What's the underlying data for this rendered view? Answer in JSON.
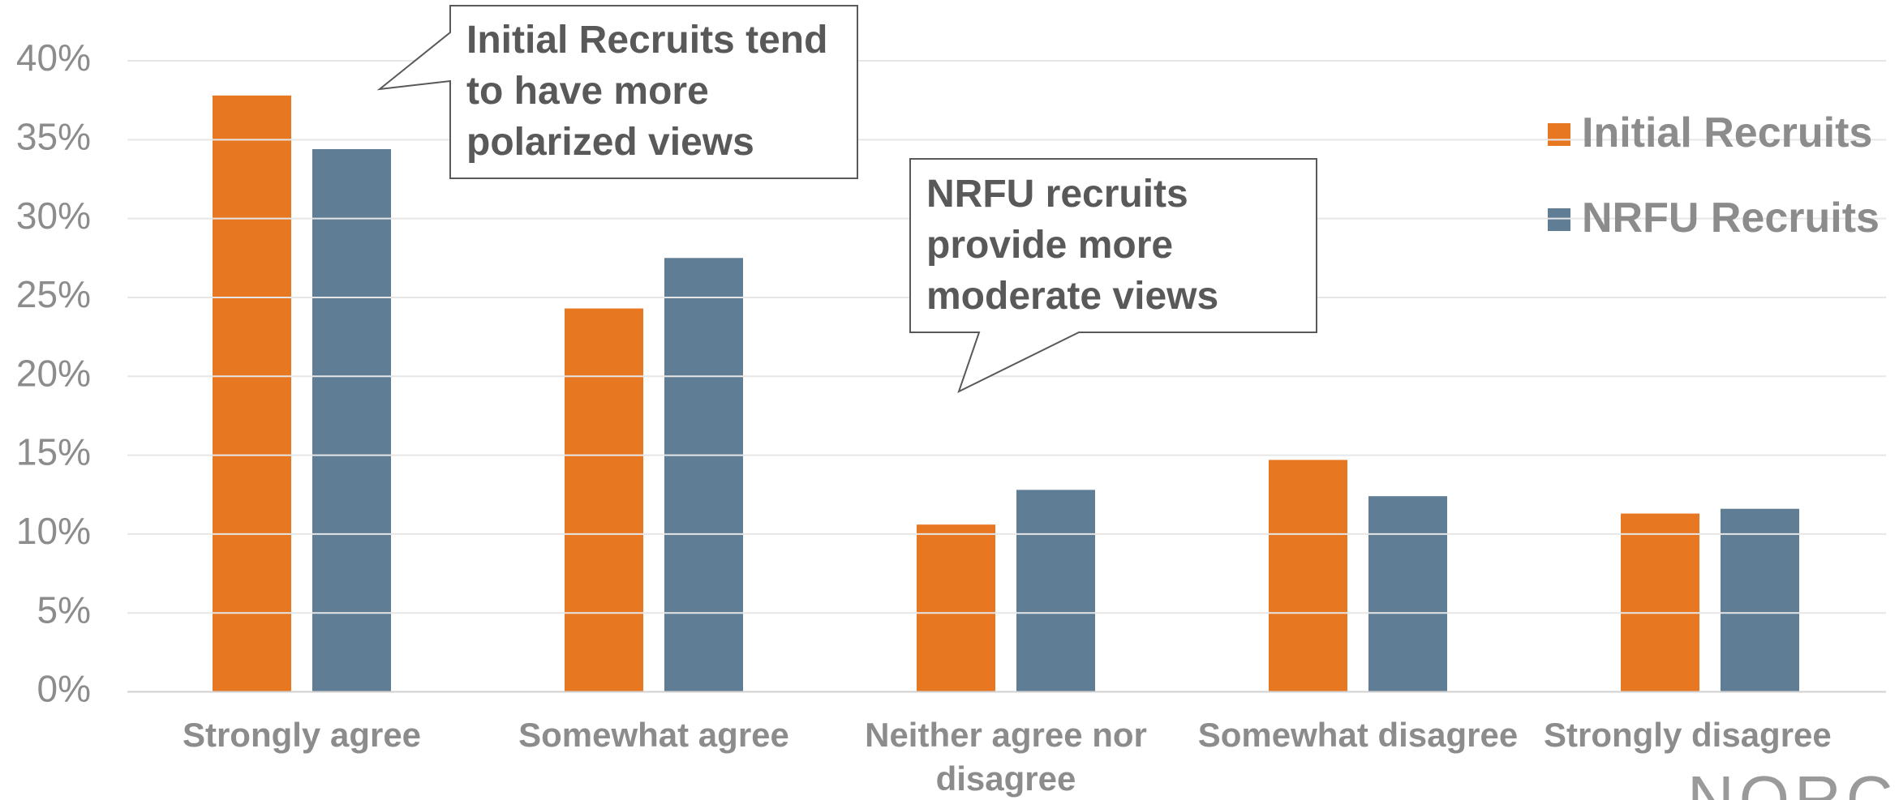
{
  "chart_data": {
    "type": "bar",
    "categories": [
      "Strongly agree",
      "Somewhat agree",
      "Neither agree nor disagree",
      "Somewhat disagree",
      "Strongly disagree"
    ],
    "series": [
      {
        "name": "Initial Recruits",
        "color": "#e87722",
        "values": [
          37.8,
          24.3,
          10.6,
          14.7,
          11.3
        ]
      },
      {
        "name": "NRFU Recruits",
        "color": "#5f7d95",
        "values": [
          34.4,
          27.5,
          12.8,
          12.4,
          11.6
        ]
      }
    ],
    "ylim": [
      0,
      40
    ],
    "yticks": [
      {
        "value": 0,
        "label": "0%"
      },
      {
        "value": 5,
        "label": "5%"
      },
      {
        "value": 10,
        "label": "10%"
      },
      {
        "value": 15,
        "label": "15%"
      },
      {
        "value": 20,
        "label": "20%"
      },
      {
        "value": 25,
        "label": "25%"
      },
      {
        "value": 30,
        "label": "30%"
      },
      {
        "value": 35,
        "label": "35%"
      },
      {
        "value": 40,
        "label": "40%"
      }
    ],
    "grid": true,
    "legend": "right",
    "annotations": [
      "Initial Recruits tend to have more polarized views",
      "NRFU recruits provide more moderate views"
    ],
    "logo": "NORC"
  }
}
